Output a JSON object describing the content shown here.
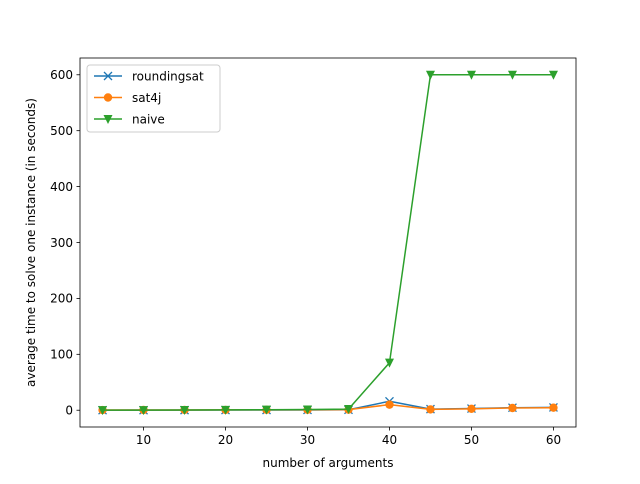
{
  "chart_data": {
    "type": "line",
    "title": "",
    "xlabel": "number of arguments",
    "ylabel": "average time to solve one instance (in seconds)",
    "x": [
      5,
      10,
      15,
      20,
      25,
      30,
      35,
      40,
      45,
      50,
      55,
      60
    ],
    "xlim": [
      2.25,
      62.75
    ],
    "ylim": [
      -30,
      630
    ],
    "xticks": [
      10,
      20,
      30,
      40,
      50,
      60
    ],
    "yticks": [
      0,
      100,
      200,
      300,
      400,
      500,
      600
    ],
    "grid": false,
    "legend_position": "upper-left",
    "series": [
      {
        "name": "roundingsat",
        "color": "#1f77b4",
        "marker": "x",
        "values": [
          0.05,
          0.1,
          0.15,
          0.3,
          0.4,
          0.5,
          0.8,
          16,
          2,
          3,
          4.5,
          5
        ]
      },
      {
        "name": "sat4j",
        "color": "#ff7f0e",
        "marker": "o",
        "values": [
          0.3,
          0.4,
          0.5,
          0.6,
          0.7,
          0.8,
          1.0,
          10,
          1.5,
          2.5,
          4,
          4.5
        ]
      },
      {
        "name": "naive",
        "color": "#2ca02c",
        "marker": "v",
        "values": [
          0.1,
          0.2,
          0.4,
          0.6,
          0.9,
          1.2,
          2,
          85,
          600,
          600,
          600,
          600
        ]
      }
    ]
  }
}
